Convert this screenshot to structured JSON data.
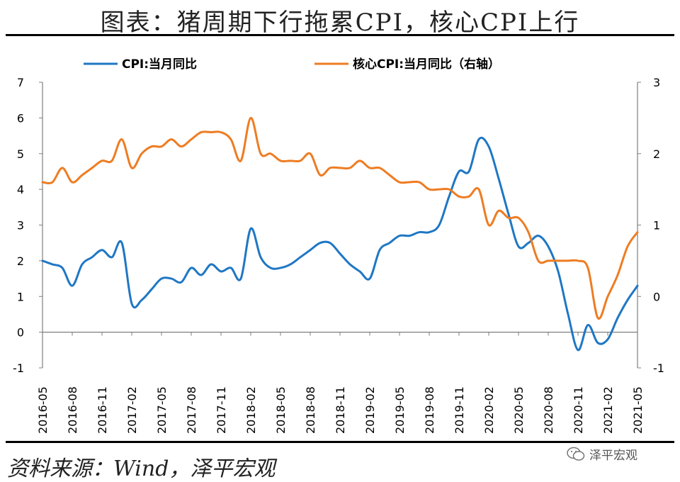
{
  "title": "图表：猪周期下行拖累CPI，核心CPI上行",
  "source": "资料来源：Wind，泽平宏观",
  "watermark": "泽平宏观",
  "chart_data": {
    "type": "line",
    "x_tick_labels": [
      "2016-05",
      "2016-08",
      "2016-11",
      "2017-02",
      "2017-05",
      "2017-08",
      "2017-11",
      "2018-02",
      "2018-05",
      "2018-08",
      "2018-11",
      "2019-02",
      "2019-05",
      "2019-08",
      "2019-11",
      "2020-02",
      "2020-05",
      "2020-08",
      "2020-11",
      "2021-02",
      "2021-05"
    ],
    "x": [
      "2016-05",
      "2016-06",
      "2016-07",
      "2016-08",
      "2016-09",
      "2016-10",
      "2016-11",
      "2016-12",
      "2017-01",
      "2017-02",
      "2017-03",
      "2017-04",
      "2017-05",
      "2017-06",
      "2017-07",
      "2017-08",
      "2017-09",
      "2017-10",
      "2017-11",
      "2017-12",
      "2018-01",
      "2018-02",
      "2018-03",
      "2018-04",
      "2018-05",
      "2018-06",
      "2018-07",
      "2018-08",
      "2018-09",
      "2018-10",
      "2018-11",
      "2018-12",
      "2019-01",
      "2019-02",
      "2019-03",
      "2019-04",
      "2019-05",
      "2019-06",
      "2019-07",
      "2019-08",
      "2019-09",
      "2019-10",
      "2019-11",
      "2019-12",
      "2020-01",
      "2020-02",
      "2020-03",
      "2020-04",
      "2020-05",
      "2020-06",
      "2020-07",
      "2020-08",
      "2020-09",
      "2020-10",
      "2020-11",
      "2020-12",
      "2021-01",
      "2021-02",
      "2021-03",
      "2021-04",
      "2021-05"
    ],
    "series": [
      {
        "name": "CPI:当月同比",
        "axis": "left",
        "color": "#1f77c4",
        "values": [
          2.0,
          1.9,
          1.8,
          1.3,
          1.9,
          2.1,
          2.3,
          2.1,
          2.5,
          0.8,
          0.9,
          1.2,
          1.5,
          1.5,
          1.4,
          1.8,
          1.6,
          1.9,
          1.7,
          1.8,
          1.5,
          2.9,
          2.1,
          1.8,
          1.8,
          1.9,
          2.1,
          2.3,
          2.5,
          2.5,
          2.2,
          1.9,
          1.7,
          1.5,
          2.3,
          2.5,
          2.7,
          2.7,
          2.8,
          2.8,
          3.0,
          3.8,
          4.5,
          4.5,
          5.4,
          5.2,
          4.3,
          3.3,
          2.4,
          2.5,
          2.7,
          2.4,
          1.7,
          0.5,
          -0.5,
          0.2,
          -0.3,
          -0.2,
          0.4,
          0.9,
          1.3
        ]
      },
      {
        "name": "核心CPI:当月同比（右轴）",
        "axis": "right",
        "color": "#ee7c22",
        "values": [
          1.6,
          1.6,
          1.8,
          1.6,
          1.7,
          1.8,
          1.9,
          1.9,
          2.2,
          1.8,
          2.0,
          2.1,
          2.1,
          2.2,
          2.1,
          2.2,
          2.3,
          2.3,
          2.3,
          2.2,
          1.9,
          2.5,
          2.0,
          2.0,
          1.9,
          1.9,
          1.9,
          2.0,
          1.7,
          1.8,
          1.8,
          1.8,
          1.9,
          1.8,
          1.8,
          1.7,
          1.6,
          1.6,
          1.6,
          1.5,
          1.5,
          1.5,
          1.4,
          1.4,
          1.5,
          1.0,
          1.2,
          1.1,
          1.1,
          0.9,
          0.5,
          0.5,
          0.5,
          0.5,
          0.5,
          0.4,
          -0.3,
          0.0,
          0.3,
          0.7,
          0.9
        ]
      }
    ],
    "y_left": {
      "min": -1,
      "max": 7,
      "ticks": [
        -1,
        0,
        1,
        2,
        3,
        4,
        5,
        6,
        7
      ]
    },
    "y_right": {
      "min": -1,
      "max": 3,
      "ticks": [
        -1,
        0,
        1,
        2,
        3
      ]
    },
    "legend_position": "top",
    "grid": false
  }
}
